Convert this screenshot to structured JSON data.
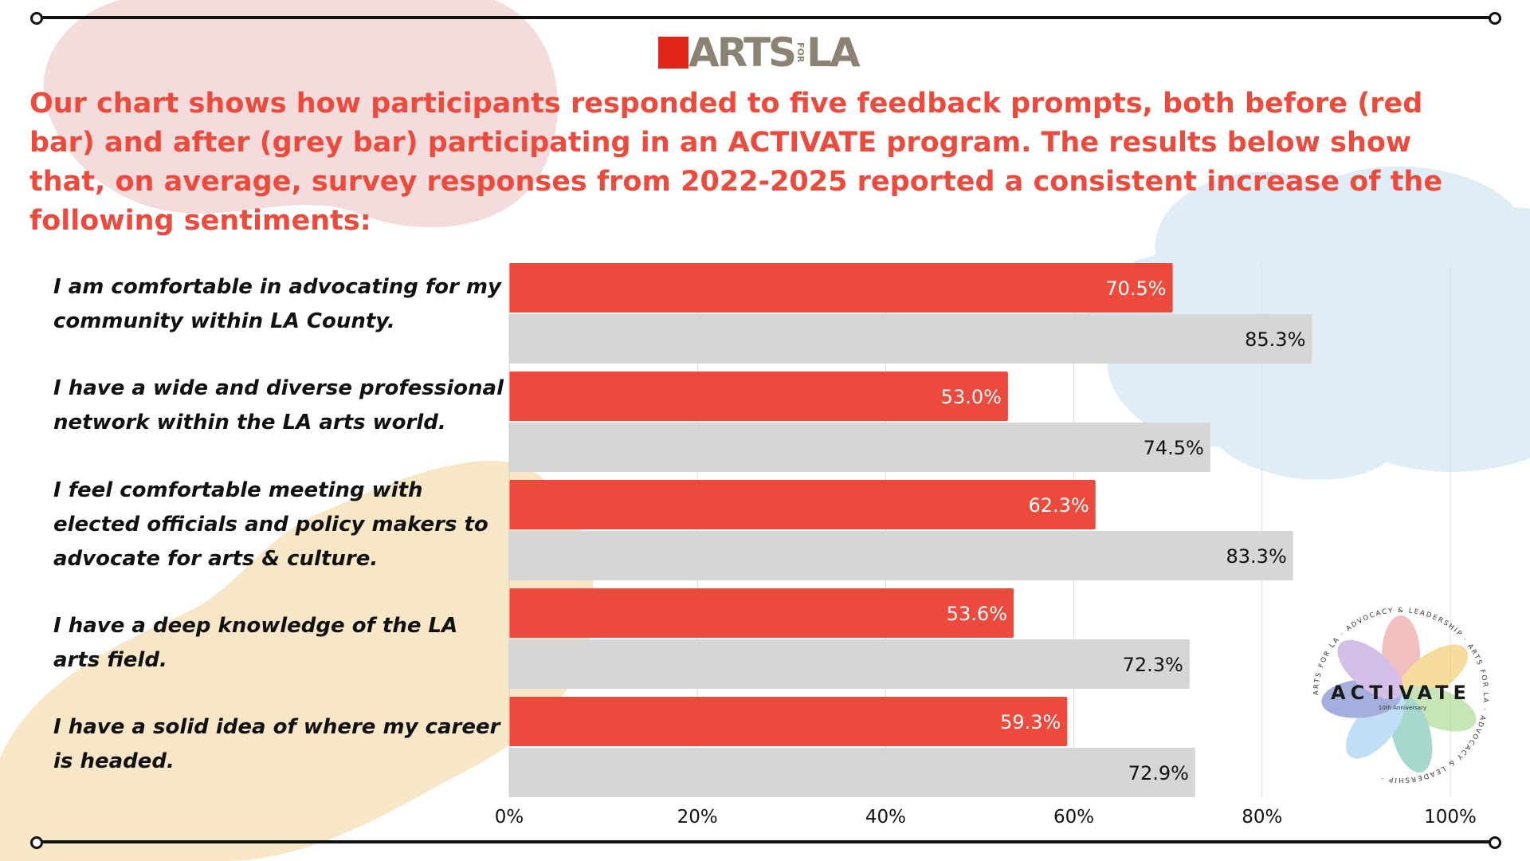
{
  "header": {
    "logo_text_left": "ARTS",
    "logo_text_small": "FOR",
    "logo_text_right": "LA",
    "intro": "Our chart shows how participants responded to five feedback prompts, both before (red bar) and after (grey bar) participating in an ACTIVATE program. The results below show that, on average, survey responses from 2022-2025 reported a consistent increase of the following sentiments:"
  },
  "badge": {
    "title": "ACTIVATE",
    "subtitle": "10th Anniversary",
    "ring_text": "ARTS FOR LA · ADVOCACY & LEADERSHIP · ARTS FOR LA · ADVOCACY & LEADERSHIP ·"
  },
  "colors": {
    "before": "#ec4a3c",
    "after": "#d6d6d6",
    "accent_text": "#ec4a3c",
    "blob_pink": "#f5dcdc",
    "blob_blue": "#dfedf7",
    "blob_yellow": "#f7e7c6"
  },
  "chart_data": {
    "type": "bar",
    "orientation": "horizontal",
    "categories": [
      "I am comfortable in advocating for my community within LA County.",
      "I have a wide and diverse professional network within the LA arts world.",
      "I feel comfortable meeting with elected officials and policy makers to advocate for arts & culture.",
      "I have a deep knowledge of the LA arts field.",
      "I have a solid idea of where my career is headed."
    ],
    "series": [
      {
        "values": [
          70.5,
          53.0,
          62.3,
          53.6,
          59.3
        ],
        "labels": [
          "70.5%",
          "53.0%",
          "62.3%",
          "53.6%",
          "59.3%"
        ]
      },
      {
        "values": [
          85.3,
          74.5,
          83.3,
          72.3,
          72.9
        ],
        "labels": [
          "85.3%",
          "74.5%",
          "83.3%",
          "72.3%",
          "72.9%"
        ]
      }
    ],
    "xlim": [
      0,
      100
    ],
    "xticks": [
      "0%",
      "20%",
      "40%",
      "60%",
      "80%",
      "100%"
    ],
    "grid": true
  }
}
